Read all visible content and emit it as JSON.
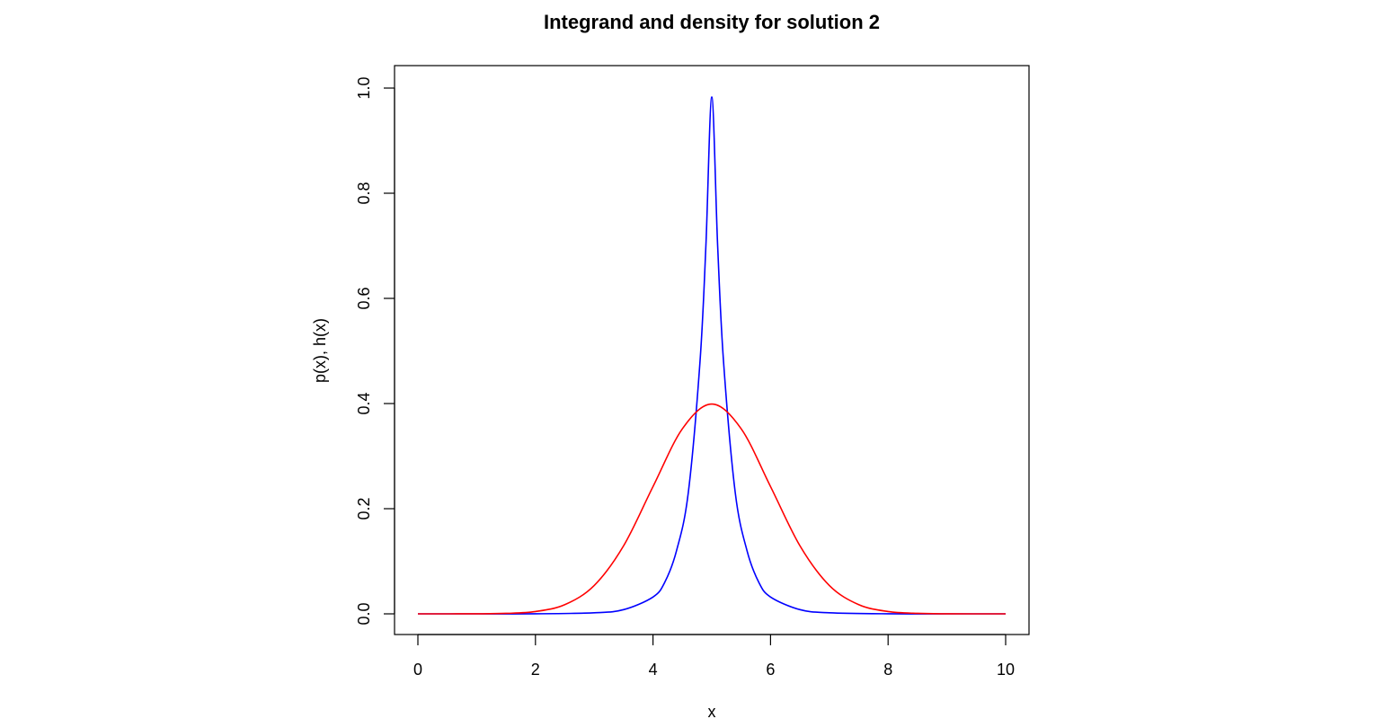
{
  "chart_data": {
    "type": "line",
    "title": "Integrand and density for solution 2",
    "xlabel": "x",
    "ylabel": "p(x), h(x)",
    "xlim": [
      0,
      10
    ],
    "ylim": [
      0,
      1
    ],
    "xticks": [
      "0",
      "2",
      "4",
      "6",
      "8",
      "10"
    ],
    "yticks": [
      "0.0",
      "0.2",
      "0.4",
      "0.6",
      "0.8",
      "1.0"
    ],
    "grid": false,
    "legend": "none",
    "series": [
      {
        "color": "#0000ff",
        "x": [
          0,
          1,
          2,
          3,
          3.5,
          4,
          4.2,
          4.4,
          4.6,
          4.8,
          4.9,
          5,
          5.1,
          5.2,
          5.4,
          5.6,
          5.8,
          6,
          6.5,
          7,
          8,
          9,
          10
        ],
        "y": [
          0,
          0,
          0.0001,
          0.002,
          0.008,
          0.032,
          0.06,
          0.12,
          0.23,
          0.48,
          0.7,
          0.983,
          0.7,
          0.48,
          0.23,
          0.12,
          0.06,
          0.032,
          0.008,
          0.002,
          0.0001,
          0,
          0
        ]
      },
      {
        "color": "#ff0000",
        "x": [
          0,
          1,
          1.5,
          2,
          2.5,
          3,
          3.5,
          4,
          4.5,
          5,
          5.5,
          6,
          6.5,
          7,
          7.5,
          8,
          8.5,
          9,
          10
        ],
        "y": [
          0,
          0.0001,
          0.0009,
          0.0044,
          0.0175,
          0.054,
          0.1295,
          0.242,
          0.352,
          0.399,
          0.352,
          0.242,
          0.1295,
          0.054,
          0.0175,
          0.0044,
          0.0009,
          0.0001,
          0
        ]
      }
    ]
  }
}
